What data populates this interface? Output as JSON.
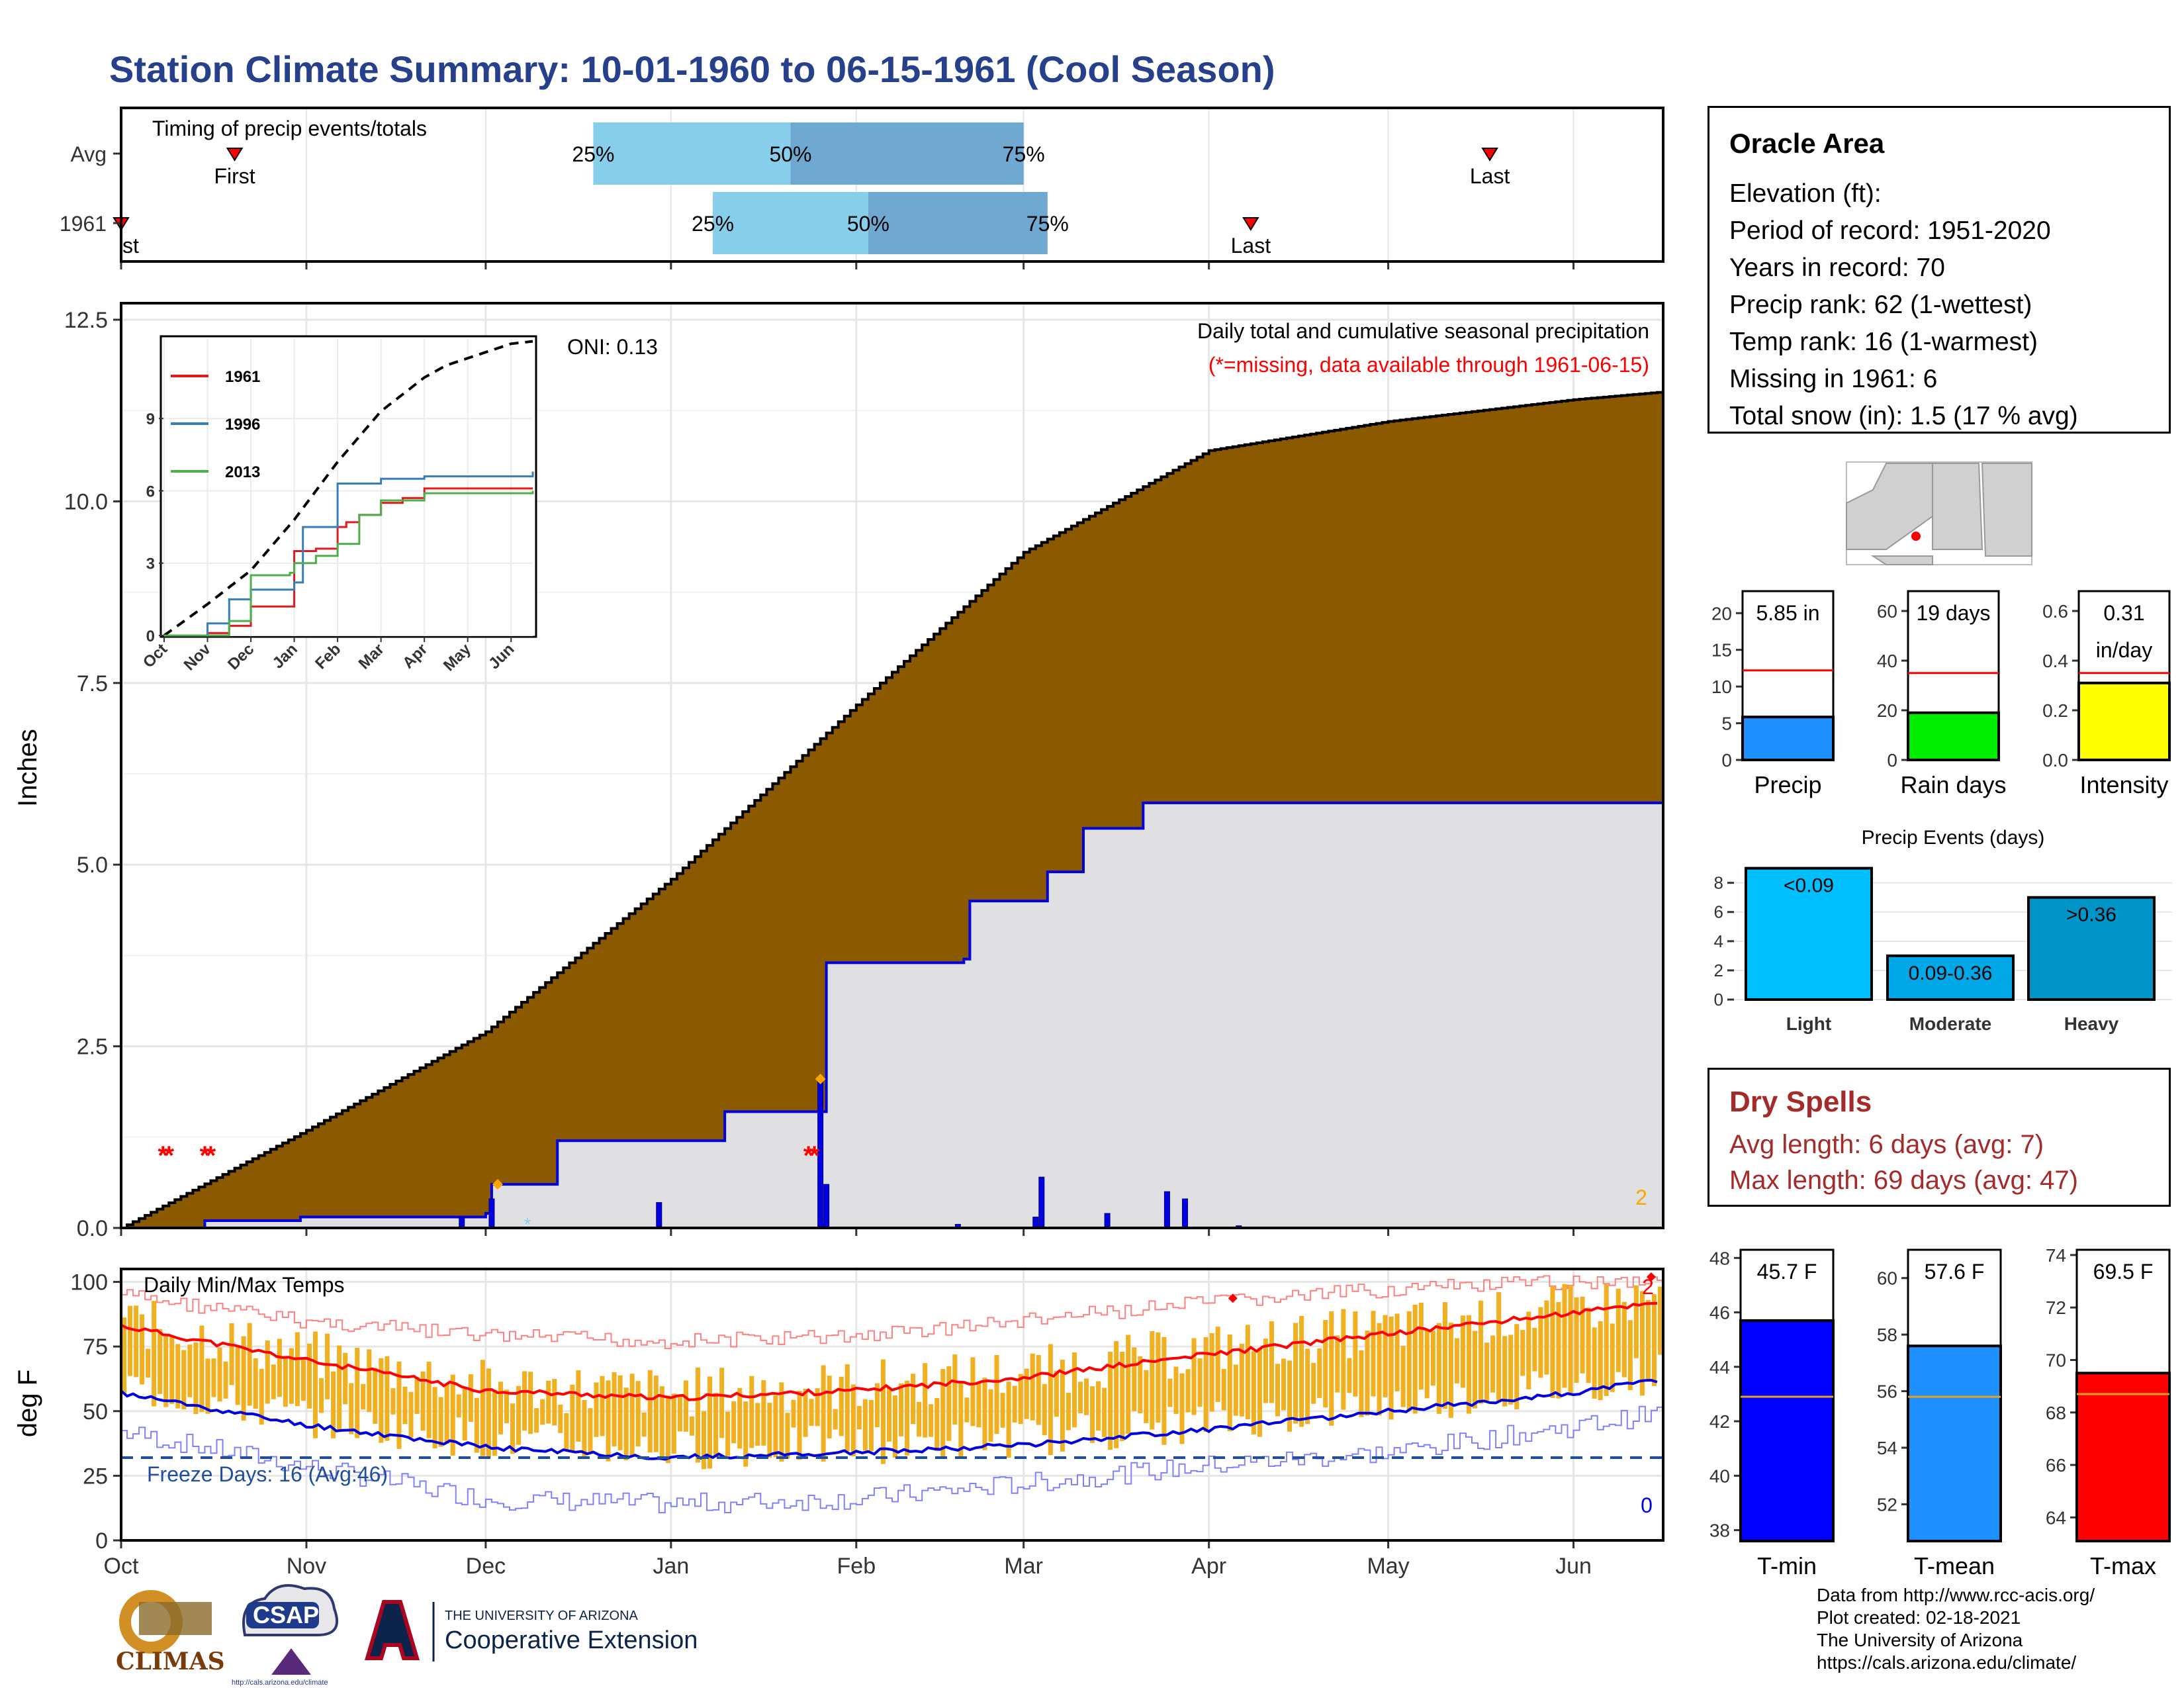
{
  "title": "Station Climate Summary: 10-01-1960 to 06-15-1961 (Cool Season)",
  "info": {
    "name": "Oracle Area",
    "lines": [
      "Elevation (ft):",
      "Period of record: 1951-2020",
      "Years in record: 70",
      "Precip rank: 62 (1-wettest)",
      "Temp rank: 16 (1-warmest)",
      "Missing in 1961: 6",
      "Total snow (in): 1.5 (17 % avg)"
    ]
  },
  "dry_spells": {
    "title": "Dry Spells",
    "avg_length": "Avg length: 6 days (avg: 7)",
    "max_length": "Max length: 69 days (avg: 47)"
  },
  "credits": [
    "Data from http://www.rcc-acis.org/",
    "Plot created: 02-18-2021",
    "The University of Arizona",
    "https://cals.arizona.edu/climate/"
  ],
  "logos": {
    "climas": "CLIMAS",
    "csap": "CSAP",
    "csap_url": "http://cals.arizona.edu/climate",
    "ua_line1": "THE UNIVERSITY OF ARIZONA",
    "ua_line2": "Cooperative Extension"
  },
  "colors": {
    "cumulative_fill": "#8b5a00",
    "current_fill": "#e0e0e2",
    "current_line": "#0000e0",
    "temp_bar": "#f0b020",
    "tmax_line": "#ff0000",
    "tmin_line": "#0000e0",
    "q_light": "#87ceeb",
    "q_dark": "#6fa8d0",
    "missing": "#ff0000",
    "snow": "#ffa500"
  },
  "chart_data": [
    {
      "type": "timeline",
      "name": "timing",
      "title": "Timing of precip events/totals",
      "rows": [
        {
          "label": "Avg",
          "first": "Oct 20",
          "q25": "Dec 19",
          "q50": "Jan 21",
          "q75": "Mar 1",
          "last": "May 18"
        },
        {
          "label": "1961",
          "first": "Oct 1",
          "q25": "Jan 8",
          "q50": "Feb 3",
          "q75": "Mar 5",
          "last": "Apr 8"
        }
      ],
      "marker_labels": {
        "first": "First",
        "first_clipped": "st",
        "last": "Last",
        "q25": "25%",
        "q50": "50%",
        "q75": "75%"
      }
    },
    {
      "type": "area",
      "name": "cumulative-precip",
      "title": "Daily total and cumulative seasonal precipitation",
      "subtitle": "(*=missing, data available through 1961-06-15)",
      "ylabel": "Inches",
      "ylim": [
        0,
        12.5
      ],
      "yticks": [
        "0.0",
        "2.5",
        "5.0",
        "7.5",
        "10.0",
        "12.5"
      ],
      "xticks": [
        "Oct",
        "Nov",
        "Dec",
        "Jan",
        "Feb",
        "Mar",
        "Apr",
        "May",
        "Jun"
      ],
      "oni": "ONI: 0.13",
      "corner_count": "2",
      "avg_cumulative": {
        "day": [
          0,
          30,
          61,
          92,
          123,
          151,
          182,
          212,
          243,
          257
        ],
        "value": [
          0,
          1.3,
          2.7,
          4.8,
          7.2,
          9.3,
          10.7,
          11.1,
          11.4,
          11.5
        ]
      },
      "current_cumulative": {
        "day": [
          0,
          14,
          30,
          61,
          62,
          72,
          73,
          100,
          101,
          117,
          118,
          141,
          142,
          154,
          155,
          160,
          161,
          170,
          171,
          257
        ],
        "value": [
          0,
          0.1,
          0.15,
          0.2,
          0.6,
          0.6,
          1.2,
          1.2,
          1.6,
          1.6,
          3.65,
          3.7,
          4.5,
          4.5,
          4.9,
          4.9,
          5.5,
          5.5,
          5.85,
          5.85
        ]
      },
      "daily_precip": [
        {
          "day": 57,
          "value": 0.15
        },
        {
          "day": 62,
          "value": 0.4
        },
        {
          "day": 90,
          "value": 0.35
        },
        {
          "day": 117,
          "value": 2.05
        },
        {
          "day": 118,
          "value": 0.6
        },
        {
          "day": 140,
          "value": 0.05
        },
        {
          "day": 153,
          "value": 0.15
        },
        {
          "day": 154,
          "value": 0.7
        },
        {
          "day": 165,
          "value": 0.2
        },
        {
          "day": 175,
          "value": 0.5
        },
        {
          "day": 178,
          "value": 0.4
        },
        {
          "day": 187,
          "value": 0.03
        }
      ],
      "missing_days": [
        7,
        8,
        14,
        15,
        115,
        116
      ],
      "snow_days": [
        {
          "day": 63,
          "value": 0.6
        },
        {
          "day": 117,
          "value": 2.05
        }
      ],
      "light_snow_day": 68
    },
    {
      "type": "line",
      "name": "inset-cumulative",
      "series": [
        {
          "name": "1961",
          "color": "#e41a1c",
          "x": [
            0,
            1,
            1.5,
            2,
            2.9,
            3,
            3.5,
            4,
            4.2,
            4.5,
            5,
            5.5,
            6,
            6.3,
            8.5
          ],
          "y": [
            0,
            0.1,
            0.4,
            1.2,
            1.2,
            3.5,
            3.6,
            4.5,
            4.7,
            5,
            5.5,
            5.7,
            6.1,
            6.1,
            6.1
          ]
        },
        {
          "name": "1996",
          "color": "#377eb8",
          "x": [
            0,
            1,
            1.5,
            2,
            3,
            3.2,
            4,
            5,
            5.2,
            6,
            8.5
          ],
          "y": [
            0,
            0.5,
            1.5,
            1.9,
            2.2,
            4.5,
            6.3,
            6.5,
            6.5,
            6.6,
            6.8
          ]
        },
        {
          "name": "2013",
          "color": "#4daf4a",
          "x": [
            0,
            1.5,
            2,
            2.9,
            3,
            3.5,
            4,
            4.5,
            5,
            6,
            8.5
          ],
          "y": [
            0,
            0.6,
            2.5,
            2.6,
            3.0,
            3.3,
            3.8,
            5,
            5.6,
            5.9,
            6.0
          ]
        }
      ],
      "average": {
        "x": [
          0,
          1,
          2,
          3,
          4,
          5,
          6,
          6.5,
          7,
          8,
          8.5
        ],
        "y": [
          0,
          1.3,
          2.7,
          4.8,
          7.2,
          9.3,
          10.7,
          11.2,
          11.5,
          12.1,
          12.2
        ]
      },
      "ylim": [
        0,
        12.3
      ],
      "yticks": [
        "0",
        "3",
        "6",
        "9"
      ],
      "xticks": [
        "Oct",
        "Nov",
        "Dec",
        "Jan",
        "Feb",
        "Mar",
        "Apr",
        "May",
        "Jun"
      ]
    },
    {
      "type": "bar",
      "name": "daily-temps",
      "title": "Daily Min/Max Temps",
      "ylabel": "deg F",
      "ylim": [
        0,
        105
      ],
      "yticks": [
        "0",
        "25",
        "50",
        "75",
        "100"
      ],
      "xticks": [
        "Oct",
        "Nov",
        "Dec",
        "Jan",
        "Feb",
        "Mar",
        "Apr",
        "May",
        "Jun"
      ],
      "freeze_label": "Freeze Days: 16 (Avg:46)",
      "freeze_line": 32,
      "count_max": "2",
      "count_min": "0",
      "avg_tmax": {
        "day": [
          0,
          30,
          61,
          92,
          123,
          151,
          182,
          212,
          243,
          257
        ],
        "value": [
          83,
          70,
          58,
          55,
          58,
          63,
          72,
          80,
          88,
          92
        ]
      },
      "avg_tmin": {
        "day": [
          0,
          30,
          61,
          92,
          123,
          151,
          182,
          212,
          243,
          257
        ],
        "value": [
          57,
          45,
          36,
          32,
          34,
          37,
          43,
          50,
          57,
          62
        ]
      },
      "rec_high": {
        "day": [
          0,
          30,
          61,
          92,
          123,
          151,
          182,
          212,
          243,
          257
        ],
        "value": [
          98,
          88,
          82,
          80,
          82,
          88,
          95,
          100,
          103,
          104
        ]
      },
      "rec_low": {
        "day": [
          0,
          30,
          61,
          92,
          123,
          151,
          182,
          212,
          243,
          257
        ],
        "value": [
          38,
          25,
          12,
          10,
          12,
          18,
          25,
          30,
          40,
          45
        ]
      },
      "record_high_days": [
        186,
        256
      ]
    },
    {
      "type": "bar",
      "name": "precip-totals",
      "panels": [
        {
          "label": "Precip",
          "value": 5.85,
          "value_text": "5.85 in",
          "avg": 12.2,
          "ylim": [
            0,
            23
          ],
          "yticks": [
            "0",
            "5",
            "10",
            "15",
            "20"
          ],
          "tick_values": [
            0,
            5,
            10,
            15,
            20
          ],
          "color": "#1e90ff"
        },
        {
          "label": "Rain days",
          "value": 19,
          "value_text": "19 days",
          "avg": 35,
          "ylim": [
            0,
            68
          ],
          "yticks": [
            "0",
            "20",
            "40",
            "60"
          ],
          "tick_values": [
            0,
            20,
            40,
            60
          ],
          "color": "#00ee00"
        },
        {
          "label": "Intensity",
          "value": 0.31,
          "value_text": "0.31",
          "value_text2": "in/day",
          "avg": 0.35,
          "ylim": [
            0,
            0.68
          ],
          "yticks": [
            "0.0",
            "0.2",
            "0.4",
            "0.6"
          ],
          "tick_values": [
            0,
            0.2,
            0.4,
            0.6
          ],
          "color": "#ffff00"
        }
      ]
    },
    {
      "type": "bar",
      "name": "precip-events",
      "title": "Precip Events (days)",
      "categories": [
        "Light",
        "Moderate",
        "Heavy"
      ],
      "values": [
        9,
        3,
        7
      ],
      "bar_labels": [
        "<0.09",
        "0.09-0.36",
        ">0.36"
      ],
      "colors": [
        "#00bfff",
        "#00a8e8",
        "#0095c8"
      ],
      "ylim": [
        0,
        9.3
      ],
      "yticks": [
        "0",
        "2",
        "4",
        "6",
        "8"
      ],
      "tick_values": [
        0,
        2,
        4,
        6,
        8
      ]
    },
    {
      "type": "bar",
      "name": "temp-means",
      "panels": [
        {
          "label": "T-min",
          "value": 45.7,
          "value_text": "45.7 F",
          "avg": 42.9,
          "ylim": [
            37.6,
            48.3
          ],
          "yticks": [
            "38",
            "40",
            "42",
            "44",
            "46",
            "48"
          ],
          "tick_values": [
            38,
            40,
            42,
            44,
            46,
            48
          ],
          "color": "#0000ff"
        },
        {
          "label": "T-mean",
          "value": 57.6,
          "value_text": "57.6 F",
          "avg": 55.8,
          "ylim": [
            50.7,
            61.0
          ],
          "yticks": [
            "52",
            "54",
            "56",
            "58",
            "60"
          ],
          "tick_values": [
            52,
            54,
            56,
            58,
            60
          ],
          "color": "#1e90ff"
        },
        {
          "label": "T-max",
          "value": 69.5,
          "value_text": "69.5 F",
          "avg": 68.7,
          "ylim": [
            63.1,
            74.2
          ],
          "yticks": [
            "64",
            "66",
            "68",
            "70",
            "72",
            "74"
          ],
          "tick_values": [
            64,
            66,
            68,
            70,
            72,
            74
          ],
          "color": "#ff0000"
        }
      ]
    }
  ]
}
